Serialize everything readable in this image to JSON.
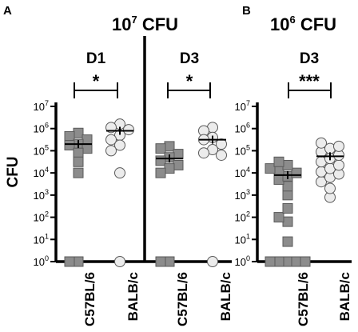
{
  "figure": {
    "panel_a": {
      "letter": "A",
      "title_base": "10",
      "title_exp": "7",
      "title_unit": " CFU",
      "sub_d1": "D1",
      "sub_d3": "D3",
      "sig_d1": "*",
      "sig_d3": "*"
    },
    "panel_b": {
      "letter": "B",
      "title_base": "10",
      "title_exp": "6",
      "title_unit": " CFU",
      "sub_d3": "D3",
      "sig": "***"
    },
    "ylabel": "CFU",
    "yticks": [
      {
        "base": "10",
        "exp": "0"
      },
      {
        "base": "10",
        "exp": "1"
      },
      {
        "base": "10",
        "exp": "2"
      },
      {
        "base": "10",
        "exp": "3"
      },
      {
        "base": "10",
        "exp": "4"
      },
      {
        "base": "10",
        "exp": "5"
      },
      {
        "base": "10",
        "exp": "6"
      },
      {
        "base": "10",
        "exp": "7"
      }
    ],
    "xticks": [
      "C57BL/6",
      "BALB/c"
    ],
    "colors": {
      "C57BL/6": "#8c8c8c",
      "BALB/c": "#ececec"
    }
  },
  "chart_data": [
    {
      "type": "scatter",
      "panel": "A",
      "dose": "10^7 CFU",
      "day": "D1",
      "ylabel": "CFU",
      "yscale": "log",
      "ylim_log10": [
        0,
        7
      ],
      "categories": [
        "C57BL/6",
        "BALB/c"
      ],
      "series": [
        {
          "name": "C57BL/6",
          "marker": "square",
          "log10_values": [
            0,
            0,
            5.8,
            5.65,
            5.5,
            5.3,
            5.25,
            5.1,
            4.9,
            4.5,
            4.0
          ],
          "mean_log10": 5.3
        },
        {
          "name": "BALB/c",
          "marker": "circle",
          "log10_values": [
            0,
            6.2,
            6.05,
            5.95,
            5.7,
            5.5,
            5.25,
            5.0,
            4.0
          ],
          "mean_log10": 5.9
        }
      ],
      "significance": "*"
    },
    {
      "type": "scatter",
      "panel": "A",
      "dose": "10^7 CFU",
      "day": "D3",
      "ylabel": "CFU",
      "yscale": "log",
      "ylim_log10": [
        0,
        7
      ],
      "categories": [
        "C57BL/6",
        "BALB/c"
      ],
      "series": [
        {
          "name": "C57BL/6",
          "marker": "square",
          "log10_values": [
            0,
            0,
            5.2,
            5.1,
            4.85,
            4.7,
            4.55,
            4.35,
            4.2,
            4.0
          ],
          "mean_log10": 4.65
        },
        {
          "name": "BALB/c",
          "marker": "circle",
          "log10_values": [
            0,
            6.05,
            5.9,
            5.6,
            5.5,
            5.3,
            5.05,
            4.9,
            4.8
          ],
          "mean_log10": 5.5
        }
      ],
      "significance": "*"
    },
    {
      "type": "scatter",
      "panel": "B",
      "dose": "10^6 CFU",
      "day": "D3",
      "ylabel": "CFU",
      "yscale": "log",
      "ylim_log10": [
        0,
        7
      ],
      "categories": [
        "C57BL/6",
        "BALB/c"
      ],
      "series": [
        {
          "name": "C57BL/6",
          "marker": "square",
          "log10_values": [
            0,
            0,
            0,
            0,
            0,
            0.9,
            1.8,
            2.0,
            2.4,
            3.0,
            3.4,
            3.7,
            3.85,
            4.0,
            4.1,
            4.2,
            4.35,
            4.5
          ],
          "mean_log10": 3.9
        },
        {
          "name": "BALB/c",
          "marker": "circle",
          "log10_values": [
            2.9,
            3.3,
            3.6,
            3.8,
            3.95,
            4.05,
            4.2,
            4.35,
            4.5,
            4.65,
            4.8,
            4.95,
            5.1,
            5.2,
            5.35
          ],
          "mean_log10": 4.75
        }
      ],
      "significance": "***"
    }
  ]
}
